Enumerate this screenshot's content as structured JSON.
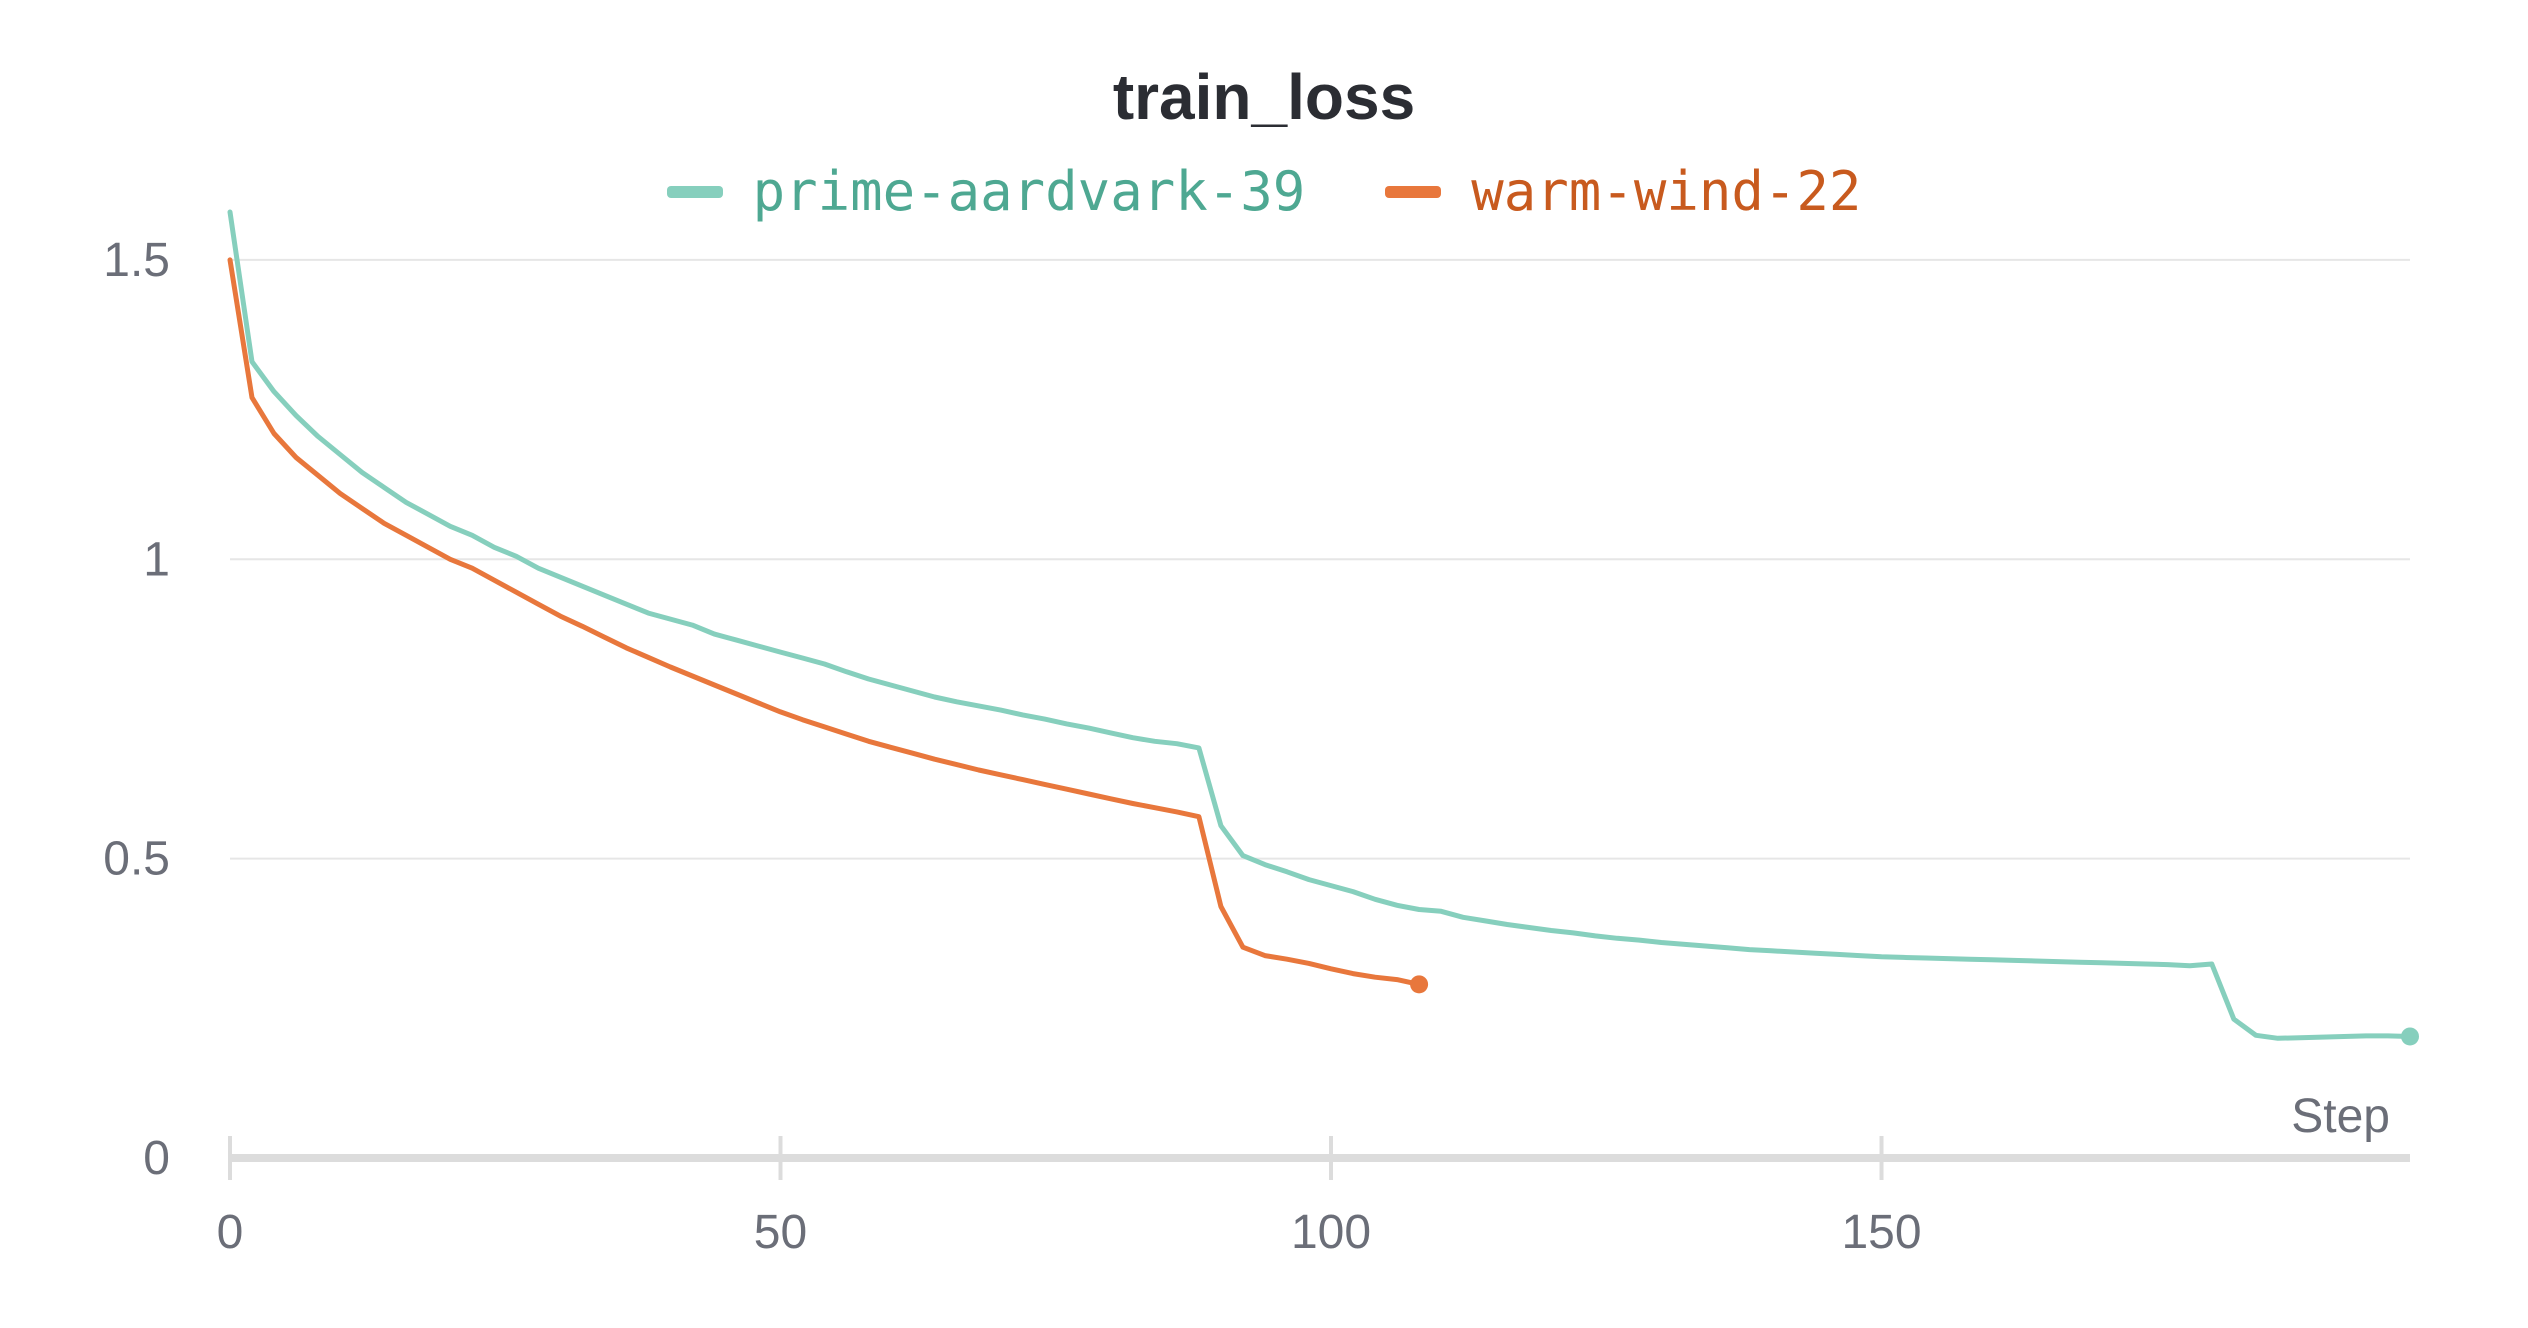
{
  "chart_data": {
    "type": "line",
    "title": "train_loss",
    "xlabel": "Step",
    "ylabel": "",
    "xlim": [
      0,
      198
    ],
    "ylim": [
      0,
      1.6
    ],
    "xticks": [
      0,
      50,
      100,
      150
    ],
    "xtick_labels": [
      "0",
      "50",
      "100",
      "150"
    ],
    "yticks": [
      0,
      0.5,
      1,
      1.5
    ],
    "ytick_labels": [
      "0",
      "0.5",
      "1",
      "1.5"
    ],
    "grid": true,
    "legend_position": "top-center",
    "series": [
      {
        "name": "prime-aardvark-39",
        "color": "#86cfbd",
        "x": [
          0,
          2,
          4,
          6,
          8,
          10,
          12,
          14,
          16,
          18,
          20,
          22,
          24,
          26,
          28,
          30,
          32,
          34,
          36,
          38,
          40,
          42,
          44,
          46,
          48,
          50,
          52,
          54,
          56,
          58,
          60,
          62,
          64,
          66,
          68,
          70,
          72,
          74,
          76,
          78,
          80,
          82,
          84,
          86,
          88,
          90,
          92,
          94,
          96,
          98,
          100,
          102,
          104,
          106,
          108,
          110,
          112,
          114,
          116,
          118,
          120,
          122,
          124,
          126,
          128,
          130,
          132,
          134,
          136,
          138,
          140,
          142,
          144,
          146,
          148,
          150,
          152,
          154,
          156,
          158,
          160,
          162,
          164,
          166,
          168,
          170,
          172,
          174,
          176,
          178,
          180,
          182,
          184,
          186,
          188,
          190,
          192,
          194,
          196,
          198
        ],
        "y": [
          1.58,
          1.33,
          1.28,
          1.24,
          1.205,
          1.175,
          1.145,
          1.12,
          1.095,
          1.075,
          1.055,
          1.04,
          1.02,
          1.005,
          0.985,
          0.97,
          0.955,
          0.94,
          0.925,
          0.91,
          0.9,
          0.89,
          0.875,
          0.865,
          0.855,
          0.845,
          0.835,
          0.825,
          0.812,
          0.8,
          0.79,
          0.78,
          0.77,
          0.762,
          0.755,
          0.748,
          0.74,
          0.733,
          0.725,
          0.718,
          0.71,
          0.702,
          0.696,
          0.692,
          0.685,
          0.555,
          0.505,
          0.49,
          0.478,
          0.465,
          0.455,
          0.445,
          0.432,
          0.422,
          0.415,
          0.412,
          0.402,
          0.396,
          0.39,
          0.385,
          0.38,
          0.376,
          0.371,
          0.367,
          0.364,
          0.36,
          0.357,
          0.354,
          0.351,
          0.348,
          0.346,
          0.344,
          0.342,
          0.34,
          0.338,
          0.336,
          0.335,
          0.334,
          0.333,
          0.332,
          0.331,
          0.33,
          0.329,
          0.328,
          0.327,
          0.326,
          0.325,
          0.324,
          0.323,
          0.321,
          0.324,
          0.232,
          0.205,
          0.2,
          0.201,
          0.202,
          0.203,
          0.204,
          0.204,
          0.203
        ]
      },
      {
        "name": "warm-wind-22",
        "color": "#e8773c",
        "x": [
          0,
          2,
          4,
          6,
          8,
          10,
          12,
          14,
          16,
          18,
          20,
          22,
          24,
          26,
          28,
          30,
          32,
          34,
          36,
          38,
          40,
          42,
          44,
          46,
          48,
          50,
          52,
          54,
          56,
          58,
          60,
          62,
          64,
          66,
          68,
          70,
          72,
          74,
          76,
          78,
          80,
          82,
          84,
          86,
          88,
          90,
          92,
          94,
          96,
          98,
          100,
          102,
          104,
          106,
          108
        ],
        "y": [
          1.5,
          1.27,
          1.21,
          1.17,
          1.14,
          1.11,
          1.085,
          1.06,
          1.04,
          1.02,
          1.0,
          0.985,
          0.965,
          0.945,
          0.925,
          0.905,
          0.888,
          0.87,
          0.852,
          0.836,
          0.82,
          0.805,
          0.79,
          0.775,
          0.76,
          0.745,
          0.732,
          0.72,
          0.708,
          0.696,
          0.686,
          0.676,
          0.666,
          0.657,
          0.648,
          0.64,
          0.632,
          0.624,
          0.616,
          0.608,
          0.6,
          0.592,
          0.585,
          0.578,
          0.57,
          0.42,
          0.352,
          0.338,
          0.332,
          0.325,
          0.316,
          0.308,
          0.302,
          0.298,
          0.29
        ]
      }
    ]
  }
}
